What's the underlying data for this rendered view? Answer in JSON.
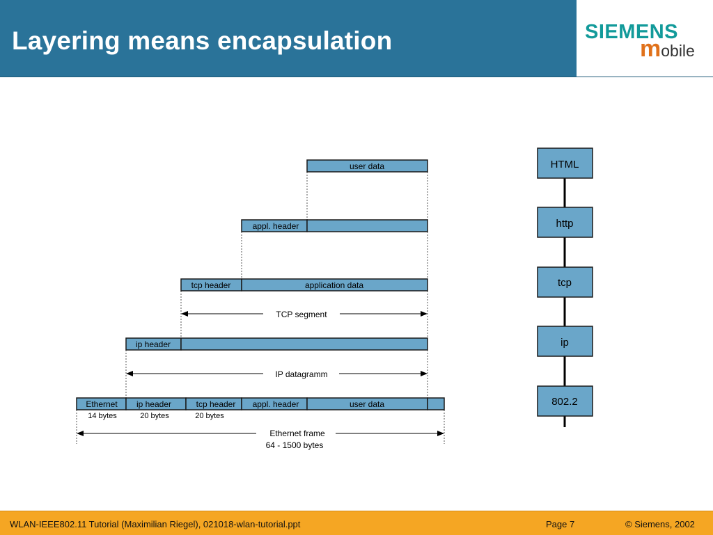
{
  "header": {
    "title": "Layering means encapsulation"
  },
  "logo": {
    "brand": "SIEMENS",
    "m": "m",
    "sub": "obile"
  },
  "diagram": {
    "user_data": "user data",
    "appl_header": "appl. header",
    "tcp_header": "tcp header",
    "application_data": "application data",
    "tcp_segment": "TCP segment",
    "ip_header": "ip header",
    "ip_datagramm": "IP datagramm",
    "eth": {
      "ethernet": "Ethernet",
      "ip_header": "ip header",
      "tcp_header": "tcp header",
      "appl_header": "appl. header",
      "user_data": "user data",
      "eth_bytes": "14 bytes",
      "ip_bytes": "20 bytes",
      "tcp_bytes": "20 bytes",
      "frame_label": "Ethernet frame",
      "frame_size": "64 - 1500 bytes"
    },
    "stack": [
      "HTML",
      "http",
      "tcp",
      "ip",
      "802.2"
    ]
  },
  "footer": {
    "left": "WLAN-IEEE802.11 Tutorial (Maximilian Riegel), 021018-wlan-tutorial.ppt",
    "page": "Page 7",
    "copyright": "© Siemens, 2002"
  },
  "colors": {
    "header_bg": "#2a7399",
    "box_fill": "#6aa6c9",
    "footer_bg": "#f5a623"
  }
}
